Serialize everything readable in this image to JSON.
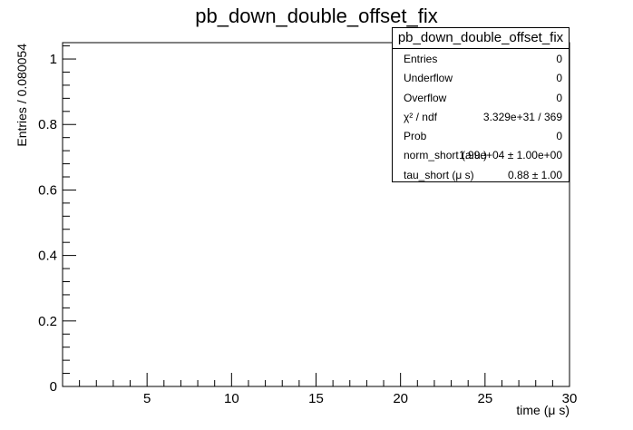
{
  "chart_data": {
    "type": "histogram",
    "title": "pb_down_double_offset_fix",
    "xlabel": "time (μ s)",
    "ylabel": "Entries / 0.080054",
    "xlim": [
      0.0,
      30.0
    ],
    "ylim": [
      0.0,
      1.05
    ],
    "x_ticks": [
      5,
      10,
      15,
      20,
      25,
      30
    ],
    "x_tick_labels": [
      "5",
      "10",
      "15",
      "20",
      "25",
      "30"
    ],
    "y_ticks": [
      0,
      0.2,
      0.4,
      0.6,
      0.8,
      1
    ],
    "y_tick_labels": [
      "0",
      "0.2",
      "0.4",
      "0.6",
      "0.8",
      "1"
    ],
    "grid": false,
    "series": []
  },
  "stats": {
    "title": "pb_down_double_offset_fix",
    "rows": [
      {
        "label": "Entries",
        "value": "0"
      },
      {
        "label": "Underflow",
        "value": "0"
      },
      {
        "label": "Overflow",
        "value": "0"
      },
      {
        "label": "χ² / ndf",
        "value": "3.329e+31 / 369"
      },
      {
        "label": "Prob",
        "value": "0"
      },
      {
        "label": "norm_short (a.u.)",
        "value": "1.99e+04 ± 1.00e+00"
      },
      {
        "label": "tau_short (μ s)",
        "value": "0.88 ± 1.00"
      }
    ]
  }
}
